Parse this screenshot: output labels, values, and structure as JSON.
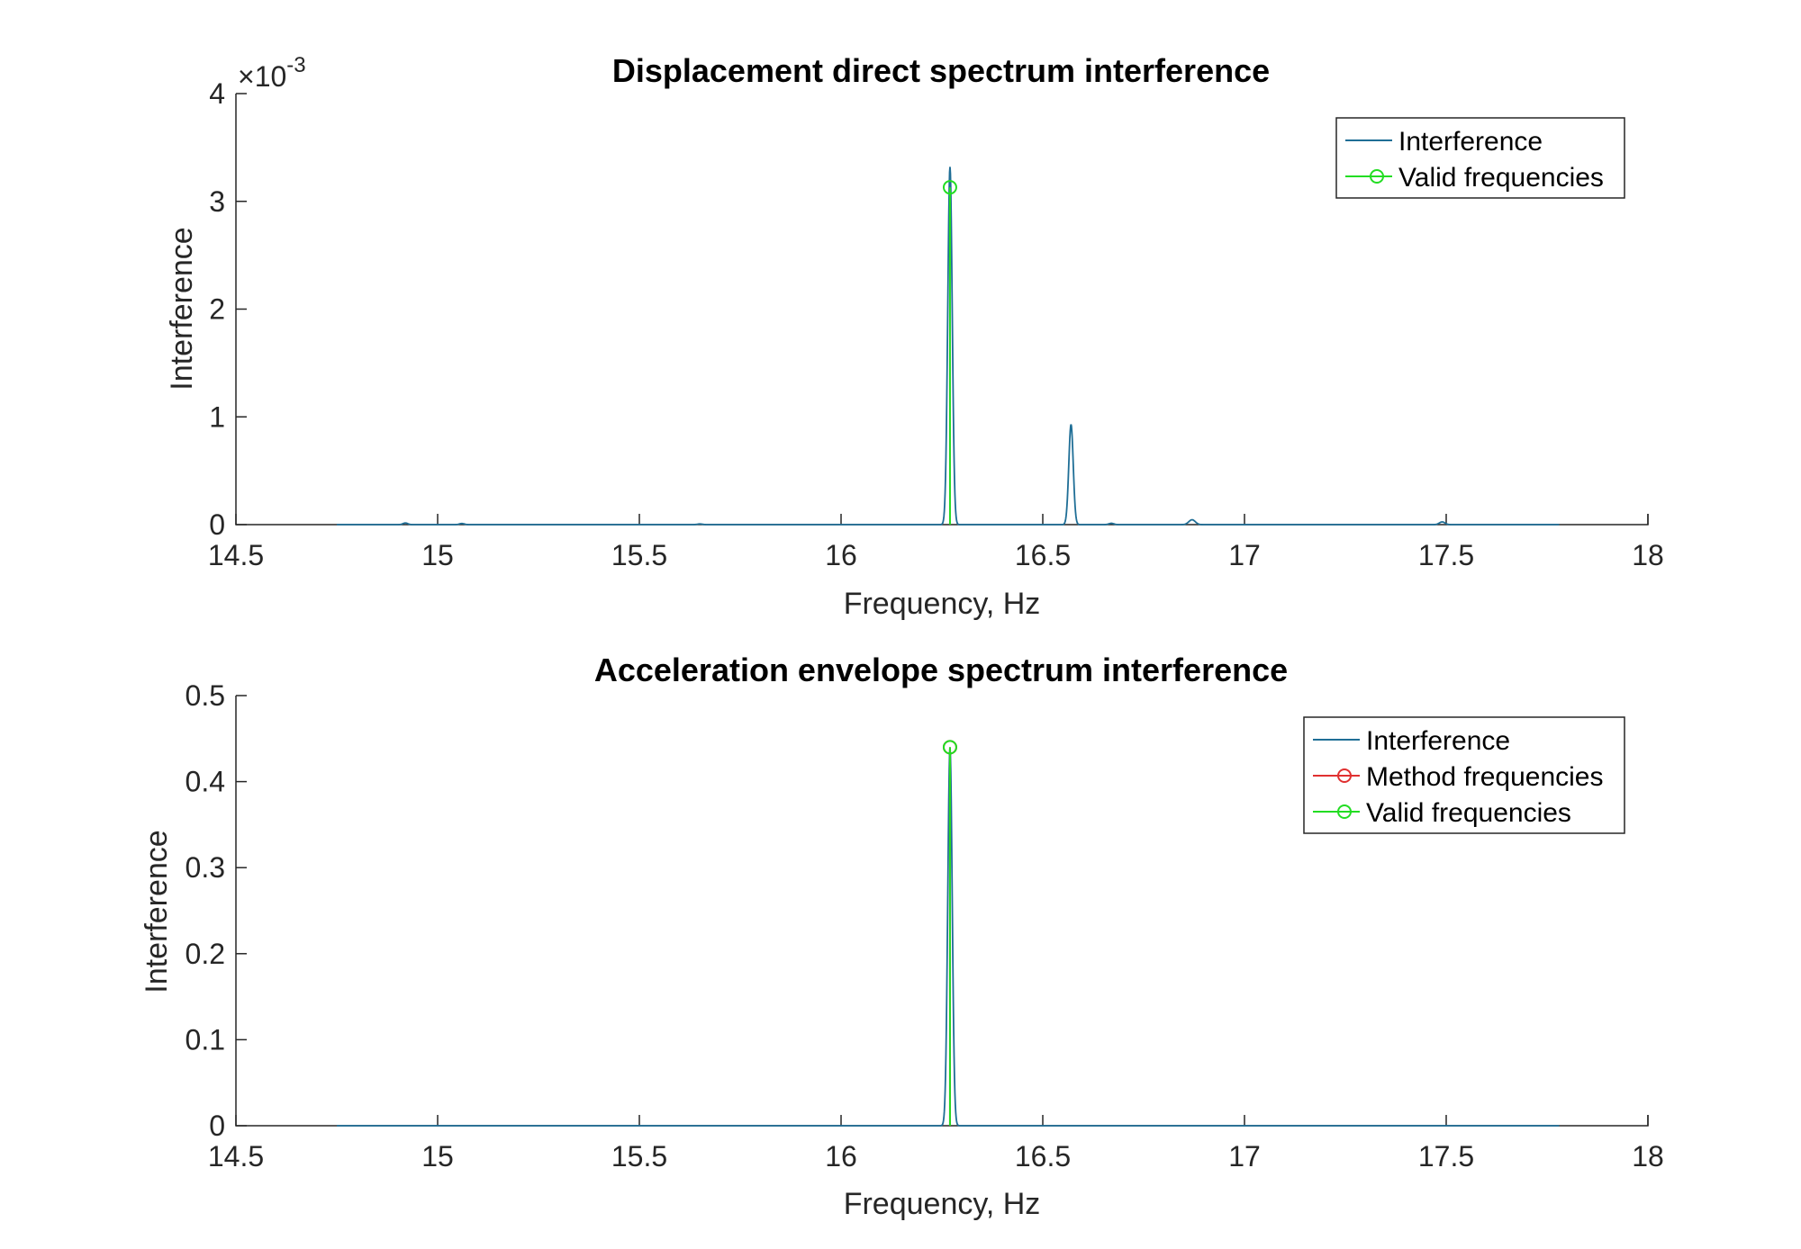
{
  "chart_data": [
    {
      "type": "line",
      "title": "Displacement direct spectrum interference",
      "xlabel": "Frequency, Hz",
      "ylabel": "Interference",
      "xlim": [
        14.5,
        18
      ],
      "ylim": [
        0,
        4
      ],
      "y_exponent": {
        "prefix": "×10",
        "power": "-3"
      },
      "xticks": [
        "14.5",
        "15",
        "15.5",
        "16",
        "16.5",
        "17",
        "17.5",
        "18"
      ],
      "yticks": [
        "0",
        "1",
        "2",
        "3",
        "4"
      ],
      "grid": false,
      "legend_position": "top-right",
      "legend": [
        "Interference",
        "Valid frequencies"
      ],
      "colors": {
        "interference": "#1f6e96",
        "valid": "#22dd22",
        "method": "#e03030"
      },
      "series": [
        {
          "name": "Interference",
          "style": "line",
          "x_range": [
            14.75,
            17.78
          ],
          "baseline": 0,
          "peaks": [
            {
              "x": 14.92,
              "height": 0.015,
              "width": 0.006
            },
            {
              "x": 15.06,
              "height": 0.01,
              "width": 0.006
            },
            {
              "x": 15.65,
              "height": 0.006,
              "width": 0.006
            },
            {
              "x": 16.27,
              "height": 3.32,
              "width": 0.0055
            },
            {
              "x": 16.57,
              "height": 0.93,
              "width": 0.0055
            },
            {
              "x": 16.67,
              "height": 0.012,
              "width": 0.006
            },
            {
              "x": 16.87,
              "height": 0.045,
              "width": 0.008
            },
            {
              "x": 17.49,
              "height": 0.025,
              "width": 0.007
            }
          ]
        },
        {
          "name": "Valid frequencies",
          "style": "stem",
          "points": [
            {
              "x": 16.27,
              "y": 3.13
            }
          ]
        }
      ]
    },
    {
      "type": "line",
      "title": "Acceleration envelope spectrum interference",
      "xlabel": "Frequency, Hz",
      "ylabel": "Interference",
      "xlim": [
        14.5,
        18
      ],
      "ylim": [
        0,
        0.5
      ],
      "xticks": [
        "14.5",
        "15",
        "15.5",
        "16",
        "16.5",
        "17",
        "17.5",
        "18"
      ],
      "yticks": [
        "0",
        "0.1",
        "0.2",
        "0.3",
        "0.4",
        "0.5"
      ],
      "grid": false,
      "legend_position": "top-right",
      "legend": [
        "Interference",
        "Method frequencies",
        "Valid frequencies"
      ],
      "colors": {
        "interference": "#1f6e96",
        "valid": "#22dd22",
        "method": "#e03030"
      },
      "series": [
        {
          "name": "Interference",
          "style": "line",
          "x_range": [
            14.75,
            17.78
          ],
          "baseline": 0,
          "peaks": [
            {
              "x": 16.27,
              "height": 0.44,
              "width": 0.0055
            }
          ]
        },
        {
          "name": "Method frequencies",
          "style": "stem",
          "points": [
            {
              "x": 16.27,
              "y": 0.44
            }
          ]
        },
        {
          "name": "Valid frequencies",
          "style": "stem",
          "points": [
            {
              "x": 16.27,
              "y": 0.44
            }
          ]
        }
      ]
    }
  ]
}
